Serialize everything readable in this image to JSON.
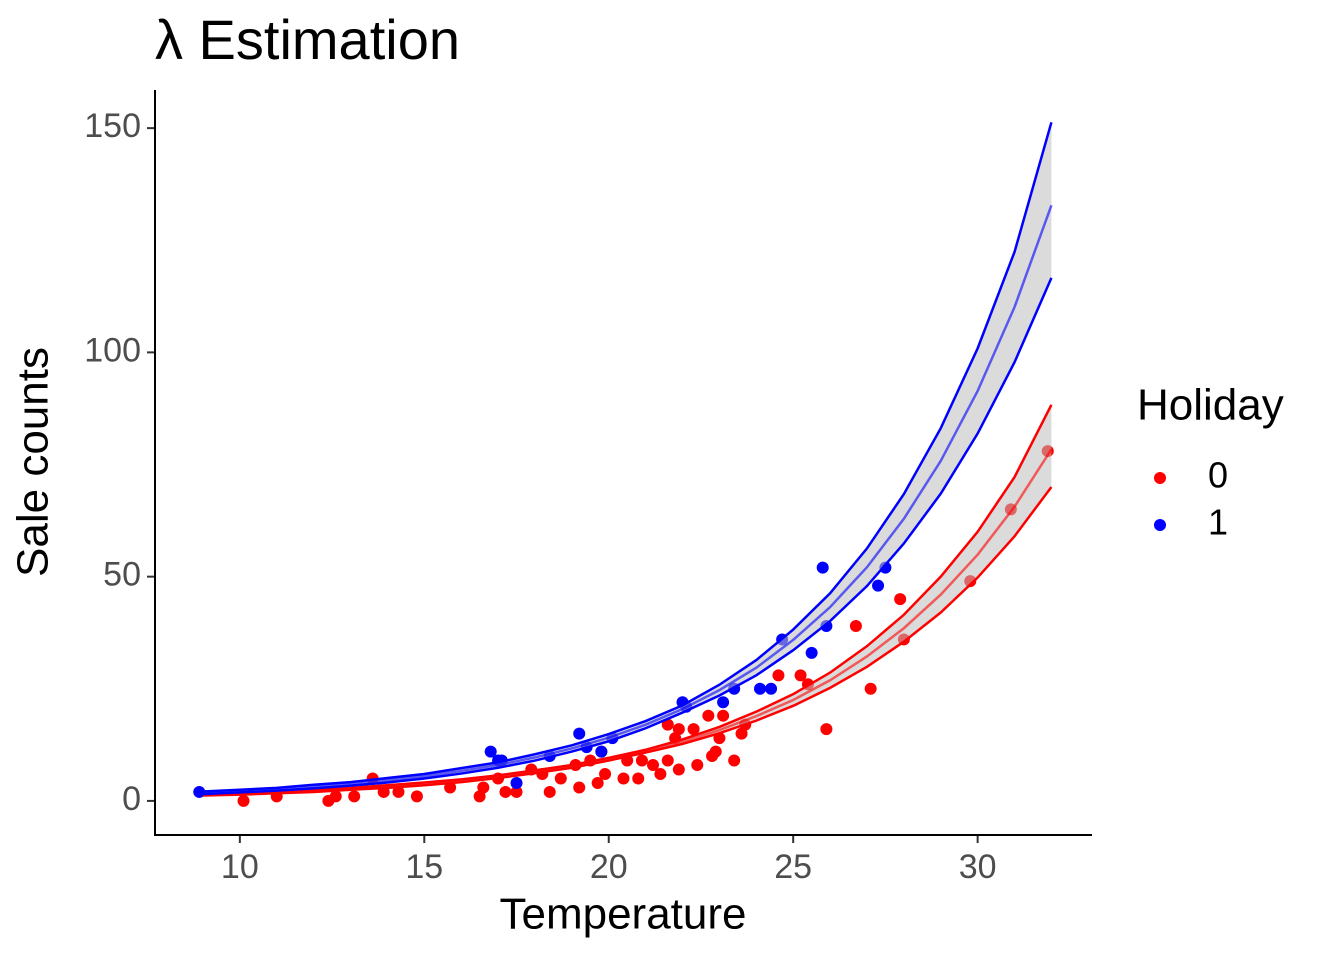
{
  "chart_data": {
    "type": "scatter",
    "title": "λ Estimation",
    "x_label": "Temperature",
    "y_label": "Sale counts",
    "legend_title": "Holiday",
    "legend_position": "right",
    "xlim": [
      7.7,
      33.1
    ],
    "ylim": [
      -7.6,
      158.5
    ],
    "xticks": [
      10,
      15,
      20,
      25,
      30
    ],
    "yticks": [
      0,
      50,
      100,
      150
    ],
    "grid": false,
    "series": [
      {
        "name": "0",
        "color": "#ff0000",
        "x": [
          10.1,
          11.0,
          12.4,
          12.6,
          13.1,
          13.6,
          13.9,
          14.3,
          14.8,
          15.7,
          16.5,
          16.6,
          17.0,
          17.2,
          17.5,
          17.9,
          18.2,
          18.4,
          18.7,
          19.1,
          19.2,
          19.5,
          19.7,
          19.8,
          19.9,
          20.4,
          20.5,
          20.8,
          20.9,
          21.2,
          21.4,
          21.6,
          21.6,
          21.8,
          21.9,
          21.9,
          22.3,
          22.4,
          22.7,
          22.8,
          22.9,
          23.0,
          23.1,
          23.4,
          23.6,
          23.7,
          24.6,
          25.2,
          25.4,
          25.9,
          26.7,
          27.1,
          27.9,
          28.0,
          29.8,
          30.9,
          31.9
        ],
        "values": [
          0,
          1,
          0,
          1,
          1,
          5,
          2,
          2,
          1,
          3,
          1,
          3,
          5,
          2,
          2,
          7,
          6,
          2,
          5,
          8,
          3,
          9,
          4,
          11,
          6,
          5,
          9,
          5,
          9,
          8,
          6,
          9,
          17,
          14,
          7,
          16,
          16,
          8,
          19,
          10,
          11,
          14,
          19,
          9,
          15,
          17,
          28,
          28,
          26,
          16,
          39,
          25,
          45,
          36,
          49,
          65,
          78
        ]
      },
      {
        "name": "1",
        "color": "#0000ff",
        "x": [
          8.9,
          16.8,
          17.0,
          17.1,
          17.5,
          18.4,
          19.2,
          19.4,
          19.8,
          20.1,
          22.0,
          22.1,
          23.1,
          23.4,
          24.1,
          24.4,
          24.7,
          25.5,
          25.8,
          25.9,
          27.3,
          27.5
        ],
        "values": [
          2,
          11,
          9,
          9,
          4,
          10,
          15,
          12,
          11,
          14,
          22,
          21,
          22,
          25,
          25,
          25,
          36,
          33,
          52,
          39,
          48,
          52
        ]
      }
    ],
    "fit_x": [
      9,
      10,
      11,
      12,
      13,
      14,
      15,
      16,
      17,
      18,
      19,
      20,
      21,
      22,
      23,
      24,
      25,
      26,
      27,
      28,
      29,
      30,
      31,
      32
    ],
    "fits": [
      {
        "color": "#ff0000",
        "values": [
          1.3,
          1.6,
          1.9,
          2.2,
          2.7,
          3.2,
          3.8,
          4.5,
          5.4,
          6.5,
          7.7,
          9.3,
          11.1,
          13.2,
          15.8,
          18.9,
          22.5,
          26.9,
          32.2,
          38.5,
          46.0,
          54.9,
          65.6,
          78.4
        ],
        "upper": [
          1.4,
          1.8,
          2.1,
          2.4,
          2.9,
          3.5,
          4.1,
          4.8,
          5.7,
          6.8,
          8.0,
          9.6,
          11.4,
          13.7,
          16.5,
          19.9,
          23.8,
          28.6,
          34.5,
          41.5,
          50.0,
          60.0,
          72.2,
          88.3
        ],
        "lower": [
          1.2,
          1.4,
          1.7,
          2.0,
          2.5,
          2.9,
          3.5,
          4.2,
          5.1,
          6.2,
          7.4,
          9.0,
          10.8,
          12.7,
          15.1,
          17.9,
          21.2,
          25.2,
          29.9,
          35.5,
          42.0,
          49.8,
          59.0,
          70.0
        ]
      },
      {
        "color": "#0000ff",
        "values": [
          1.8,
          2.2,
          2.6,
          3.2,
          3.8,
          4.6,
          5.5,
          6.7,
          8.0,
          9.7,
          11.7,
          14.1,
          17.0,
          20.5,
          24.7,
          29.7,
          35.9,
          43.2,
          52.1,
          62.9,
          75.8,
          91.4,
          110.1,
          132.8
        ],
        "upper": [
          2.1,
          2.5,
          2.9,
          3.6,
          4.2,
          5.1,
          6.0,
          7.3,
          8.6,
          10.4,
          12.4,
          14.9,
          17.8,
          21.3,
          25.9,
          31.4,
          38.2,
          46.3,
          56.3,
          68.4,
          83.1,
          100.9,
          122.4,
          151.3
        ],
        "lower": [
          1.5,
          1.9,
          2.3,
          2.8,
          3.4,
          4.1,
          5.0,
          6.1,
          7.4,
          9.0,
          11.0,
          13.3,
          16.2,
          19.7,
          23.5,
          28.0,
          33.6,
          40.1,
          47.9,
          57.4,
          68.5,
          81.9,
          97.8,
          116.6
        ]
      }
    ]
  }
}
